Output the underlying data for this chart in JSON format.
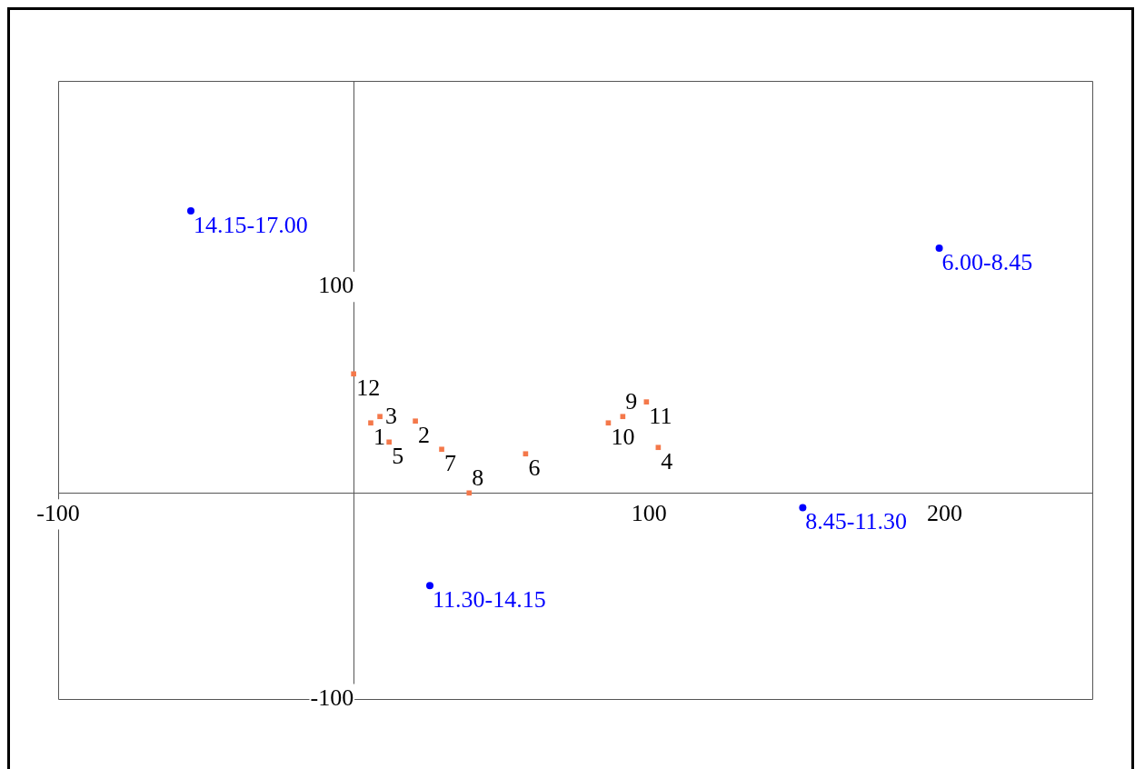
{
  "chart_data": {
    "type": "scatter",
    "xlim": [
      -100,
      250
    ],
    "ylim": [
      -100,
      200
    ],
    "xticks": [
      -100,
      100,
      200
    ],
    "yticks": [
      -100,
      100
    ],
    "grid": false,
    "legend": false,
    "series": [
      {
        "color": "#0000ff",
        "marker": "circle",
        "x": [
          -55.1,
          198.2,
          152,
          25.8
        ],
        "values": [
          136.9,
          118.8,
          -7.1,
          -45
        ]
      },
      {
        "color": "#f4784a",
        "marker": "square",
        "x": [
          0,
          5.8,
          8.9,
          12,
          20.9,
          29.8,
          39.1,
          58.2,
          86.2,
          91.1,
          99.1,
          103.1
        ],
        "values": [
          57.8,
          34,
          37.1,
          24.7,
          34.9,
          21.2,
          0,
          19,
          34,
          37.1,
          44.2,
          22.1
        ]
      }
    ],
    "annotations": [
      {
        "text": "14.15-17.00",
        "x": -55.1,
        "y": 136.9
      },
      {
        "text": "6.00-8.45",
        "x": 198.2,
        "y": 118.8
      },
      {
        "text": "8.45-11.30",
        "x": 152,
        "y": -7.1
      },
      {
        "text": "11.30-14.15",
        "x": 25.8,
        "y": -45
      },
      {
        "text": "12",
        "x": 0,
        "y": 57.8
      },
      {
        "text": "1",
        "x": 5.8,
        "y": 34
      },
      {
        "text": "3",
        "x": 8.9,
        "y": 37.1
      },
      {
        "text": "5",
        "x": 12,
        "y": 24.7
      },
      {
        "text": "2",
        "x": 20.9,
        "y": 34.9
      },
      {
        "text": "7",
        "x": 29.8,
        "y": 21.2
      },
      {
        "text": "8",
        "x": 39.1,
        "y": 0
      },
      {
        "text": "6",
        "x": 58.2,
        "y": 19
      },
      {
        "text": "10",
        "x": 86.2,
        "y": 34
      },
      {
        "text": "9",
        "x": 91.1,
        "y": 37.1
      },
      {
        "text": "11",
        "x": 99.1,
        "y": 44.2
      },
      {
        "text": "4",
        "x": 103.1,
        "y": 22.1
      }
    ]
  }
}
